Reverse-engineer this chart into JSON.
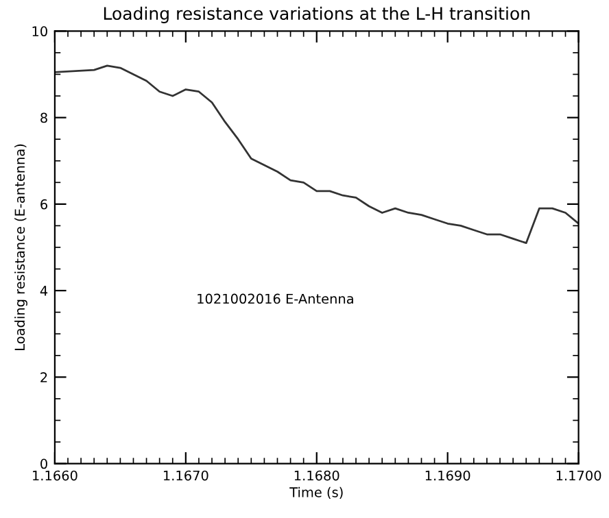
{
  "chart_data": {
    "type": "line",
    "title": "Loading resistance variations at the L-H transition",
    "xlabel": "Time (s)",
    "ylabel": "Loading resistance (E-antenna)",
    "annotations": [
      "1021002016 E-Antenna"
    ],
    "x": [
      1.166,
      1.1663,
      1.1664,
      1.1665,
      1.1667,
      1.1668,
      1.1669,
      1.167,
      1.1671,
      1.1672,
      1.1673,
      1.1674,
      1.1675,
      1.1676,
      1.1677,
      1.1678,
      1.1679,
      1.168,
      1.1681,
      1.1682,
      1.1683,
      1.1684,
      1.1685,
      1.1686,
      1.1687,
      1.1688,
      1.1689,
      1.169,
      1.1691,
      1.1692,
      1.1693,
      1.1694,
      1.1695,
      1.1696,
      1.1697,
      1.1698,
      1.1699,
      1.17
    ],
    "series": [
      {
        "color": "#333333",
        "values": [
          9.05,
          9.1,
          9.2,
          9.15,
          8.85,
          8.6,
          8.5,
          8.65,
          8.6,
          8.35,
          7.9,
          7.5,
          7.05,
          6.9,
          6.75,
          6.55,
          6.5,
          6.3,
          6.3,
          6.2,
          6.15,
          5.95,
          5.8,
          5.9,
          5.8,
          5.75,
          5.65,
          5.55,
          5.5,
          5.4,
          5.3,
          5.3,
          5.2,
          5.1,
          5.9,
          5.9,
          5.8,
          5.55
        ]
      }
    ],
    "xlim": [
      1.166,
      1.17
    ],
    "xticks": [
      {
        "value": 1.166,
        "label": "1.1660"
      },
      {
        "value": 1.167,
        "label": "1.1670"
      },
      {
        "value": 1.168,
        "label": "1.1680"
      },
      {
        "value": 1.169,
        "label": "1.1690"
      },
      {
        "value": 1.17,
        "label": "1.1700"
      }
    ],
    "ylim": [
      0,
      10
    ],
    "yticks": [
      0,
      2,
      4,
      6,
      8,
      10
    ],
    "grid": false,
    "legend": false,
    "marker": "none",
    "line_style": "solid"
  }
}
